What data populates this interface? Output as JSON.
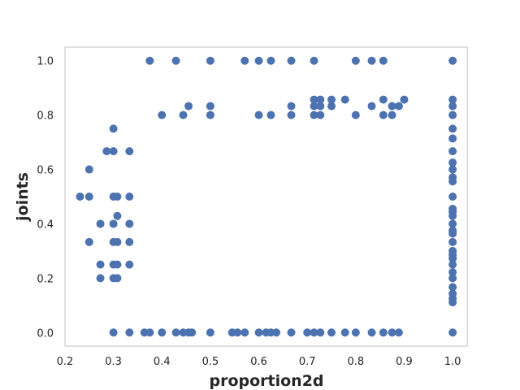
{
  "chart_data": {
    "type": "scatter",
    "title": "",
    "xlabel": "proportion2d",
    "ylabel": "joints",
    "xlim": [
      0.2,
      1.03
    ],
    "ylim": [
      -0.05,
      1.05
    ],
    "xticks": [
      0.2,
      0.3,
      0.4,
      0.5,
      0.6,
      0.7,
      0.8,
      0.9,
      1.0
    ],
    "xtick_labels": [
      "0.2",
      "0.3",
      "0.4",
      "0.5",
      "0.6",
      "0.7",
      "0.8",
      "0.9",
      "1.0"
    ],
    "yticks": [
      0.0,
      0.2,
      0.4,
      0.6,
      0.8,
      1.0
    ],
    "ytick_labels": [
      "0.0",
      "0.2",
      "0.4",
      "0.6",
      "0.8",
      "1.0"
    ],
    "grid": false,
    "legend": "none",
    "marker_color": "#4c72b0",
    "frame_color": "#cccccc",
    "points": [
      [
        0.375,
        1.0
      ],
      [
        0.429,
        1.0
      ],
      [
        0.5,
        1.0
      ],
      [
        0.571,
        1.0
      ],
      [
        0.6,
        1.0
      ],
      [
        0.625,
        1.0
      ],
      [
        0.667,
        1.0
      ],
      [
        0.714,
        1.0
      ],
      [
        0.8,
        1.0
      ],
      [
        0.833,
        1.0
      ],
      [
        0.857,
        1.0
      ],
      [
        1.0,
        1.0
      ],
      [
        0.3,
        0.0
      ],
      [
        0.333,
        0.0
      ],
      [
        0.364,
        0.0
      ],
      [
        0.375,
        0.0
      ],
      [
        0.4,
        0.0
      ],
      [
        0.429,
        0.0
      ],
      [
        0.444,
        0.0
      ],
      [
        0.455,
        0.0
      ],
      [
        0.462,
        0.0
      ],
      [
        0.5,
        0.0
      ],
      [
        0.545,
        0.0
      ],
      [
        0.556,
        0.0
      ],
      [
        0.571,
        0.0
      ],
      [
        0.6,
        0.0
      ],
      [
        0.615,
        0.0
      ],
      [
        0.625,
        0.0
      ],
      [
        0.636,
        0.0
      ],
      [
        0.667,
        0.0
      ],
      [
        0.7,
        0.0
      ],
      [
        0.714,
        0.0
      ],
      [
        0.727,
        0.0
      ],
      [
        0.75,
        0.0
      ],
      [
        0.778,
        0.0
      ],
      [
        0.8,
        0.0
      ],
      [
        0.833,
        0.0
      ],
      [
        0.857,
        0.0
      ],
      [
        0.875,
        0.0
      ],
      [
        0.889,
        0.0
      ],
      [
        1.0,
        0.0
      ],
      [
        0.231,
        0.5
      ],
      [
        0.25,
        0.5
      ],
      [
        0.25,
        0.6
      ],
      [
        0.25,
        0.333
      ],
      [
        0.273,
        0.4
      ],
      [
        0.273,
        0.25
      ],
      [
        0.273,
        0.2
      ],
      [
        0.286,
        0.667
      ],
      [
        0.3,
        0.75
      ],
      [
        0.3,
        0.667
      ],
      [
        0.3,
        0.5
      ],
      [
        0.3,
        0.4
      ],
      [
        0.3,
        0.333
      ],
      [
        0.3,
        0.25
      ],
      [
        0.3,
        0.2
      ],
      [
        0.308,
        0.5
      ],
      [
        0.308,
        0.429
      ],
      [
        0.308,
        0.333
      ],
      [
        0.308,
        0.25
      ],
      [
        0.308,
        0.2
      ],
      [
        0.333,
        0.667
      ],
      [
        0.333,
        0.5
      ],
      [
        0.333,
        0.4
      ],
      [
        0.333,
        0.333
      ],
      [
        0.333,
        0.25
      ],
      [
        1.0,
        0.857
      ],
      [
        1.0,
        0.833
      ],
      [
        1.0,
        0.8
      ],
      [
        1.0,
        0.75
      ],
      [
        1.0,
        0.714
      ],
      [
        1.0,
        0.667
      ],
      [
        1.0,
        0.625
      ],
      [
        1.0,
        0.6
      ],
      [
        1.0,
        0.571
      ],
      [
        1.0,
        0.556
      ],
      [
        1.0,
        0.5
      ],
      [
        1.0,
        0.455
      ],
      [
        1.0,
        0.444
      ],
      [
        1.0,
        0.429
      ],
      [
        1.0,
        0.4
      ],
      [
        1.0,
        0.375
      ],
      [
        1.0,
        0.364
      ],
      [
        1.0,
        0.333
      ],
      [
        1.0,
        0.3
      ],
      [
        1.0,
        0.286
      ],
      [
        1.0,
        0.273
      ],
      [
        1.0,
        0.25
      ],
      [
        1.0,
        0.222
      ],
      [
        1.0,
        0.2
      ],
      [
        1.0,
        0.167
      ],
      [
        1.0,
        0.143
      ],
      [
        1.0,
        0.125
      ],
      [
        1.0,
        0.111
      ],
      [
        0.857,
        0.857
      ],
      [
        0.9,
        0.857
      ],
      [
        0.778,
        0.857
      ],
      [
        0.727,
        0.857
      ],
      [
        0.714,
        0.857
      ],
      [
        0.75,
        0.857
      ],
      [
        0.667,
        0.833
      ],
      [
        0.455,
        0.833
      ],
      [
        0.5,
        0.833
      ],
      [
        0.875,
        0.833
      ],
      [
        0.889,
        0.833
      ],
      [
        0.833,
        0.833
      ],
      [
        0.714,
        0.833
      ],
      [
        0.727,
        0.833
      ],
      [
        0.75,
        0.833
      ],
      [
        0.8,
        0.8
      ],
      [
        0.727,
        0.8
      ],
      [
        0.714,
        0.8
      ],
      [
        0.667,
        0.8
      ],
      [
        0.625,
        0.8
      ],
      [
        0.6,
        0.8
      ],
      [
        0.5,
        0.8
      ],
      [
        0.4,
        0.8
      ],
      [
        0.444,
        0.8
      ],
      [
        0.857,
        0.8
      ],
      [
        0.875,
        0.8
      ]
    ]
  }
}
